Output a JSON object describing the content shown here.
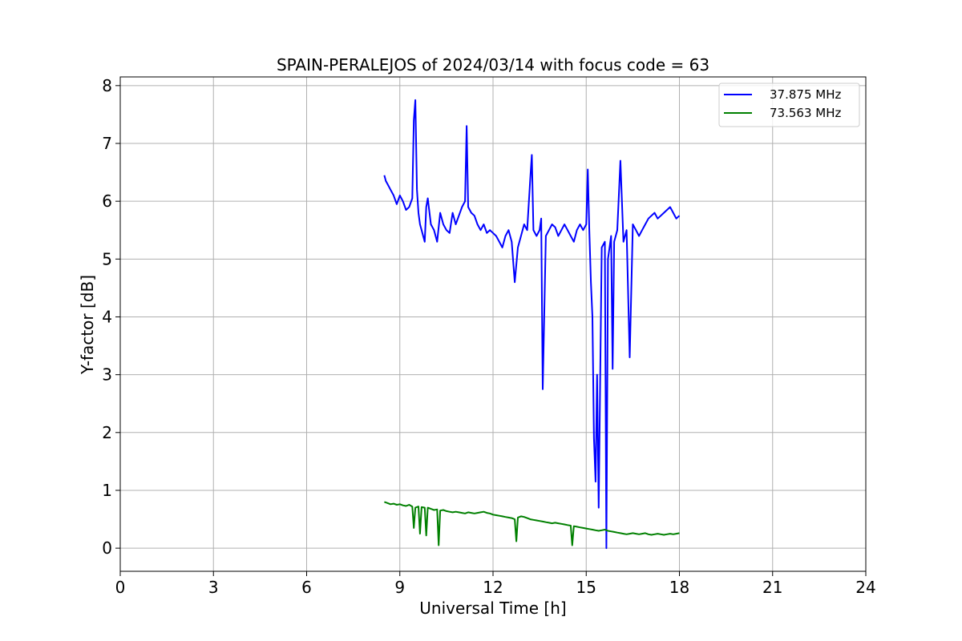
{
  "chart_data": {
    "type": "line",
    "title": "SPAIN-PERALEJOS of 2024/03/14 with focus code = 63",
    "xlabel": "Universal Time [h]",
    "ylabel": "Y-factor [dB]",
    "xlim": [
      0,
      24
    ],
    "ylim": [
      -0.4,
      8.15
    ],
    "xticks": [
      0,
      3,
      6,
      9,
      12,
      15,
      18,
      21,
      24
    ],
    "yticks": [
      0,
      1,
      2,
      3,
      4,
      5,
      6,
      7,
      8
    ],
    "grid": true,
    "legend_position": "top-right",
    "series": [
      {
        "name": "37.875 MHz",
        "color": "#0000ff",
        "x": [
          8.5,
          8.55,
          8.6,
          8.7,
          8.8,
          8.9,
          9.0,
          9.1,
          9.2,
          9.3,
          9.4,
          9.45,
          9.5,
          9.55,
          9.6,
          9.65,
          9.7,
          9.8,
          9.85,
          9.9,
          10.0,
          10.1,
          10.2,
          10.3,
          10.4,
          10.5,
          10.6,
          10.7,
          10.8,
          10.9,
          11.0,
          11.1,
          11.15,
          11.2,
          11.3,
          11.4,
          11.5,
          11.6,
          11.7,
          11.8,
          11.9,
          12.0,
          12.1,
          12.2,
          12.3,
          12.4,
          12.5,
          12.6,
          12.7,
          12.8,
          12.9,
          13.0,
          13.1,
          13.2,
          13.25,
          13.3,
          13.4,
          13.5,
          13.55,
          13.6,
          13.7,
          13.8,
          13.9,
          14.0,
          14.1,
          14.2,
          14.3,
          14.4,
          14.5,
          14.6,
          14.7,
          14.8,
          14.9,
          15.0,
          15.05,
          15.1,
          15.15,
          15.2,
          15.25,
          15.3,
          15.35,
          15.4,
          15.5,
          15.6,
          15.65,
          15.7,
          15.8,
          15.85,
          15.9,
          16.0,
          16.1,
          16.2,
          16.3,
          16.4,
          16.5,
          16.6,
          16.7,
          16.8,
          16.9,
          17.0,
          17.1,
          17.2,
          17.3,
          17.4,
          17.5,
          17.6,
          17.7,
          17.8,
          17.9,
          18.0
        ],
        "y": [
          6.45,
          6.35,
          6.3,
          6.2,
          6.1,
          5.95,
          6.1,
          6.0,
          5.85,
          5.9,
          6.05,
          7.4,
          7.75,
          6.2,
          5.8,
          5.6,
          5.5,
          5.3,
          5.9,
          6.05,
          5.6,
          5.5,
          5.3,
          5.8,
          5.6,
          5.5,
          5.45,
          5.8,
          5.6,
          5.75,
          5.9,
          6.0,
          7.3,
          5.9,
          5.8,
          5.75,
          5.6,
          5.5,
          5.6,
          5.45,
          5.5,
          5.45,
          5.4,
          5.3,
          5.2,
          5.4,
          5.5,
          5.3,
          4.6,
          5.2,
          5.4,
          5.6,
          5.5,
          6.4,
          6.8,
          5.5,
          5.4,
          5.5,
          5.7,
          2.75,
          5.4,
          5.5,
          5.6,
          5.55,
          5.4,
          5.5,
          5.6,
          5.5,
          5.4,
          5.3,
          5.5,
          5.6,
          5.5,
          5.6,
          6.55,
          5.5,
          4.6,
          4.0,
          1.9,
          1.15,
          3.0,
          0.7,
          5.2,
          5.3,
          0.0,
          5.0,
          5.4,
          3.1,
          5.3,
          5.5,
          6.7,
          5.3,
          5.5,
          3.3,
          5.6,
          5.5,
          5.4,
          5.5,
          5.6,
          5.7,
          5.75,
          5.8,
          5.7,
          5.75,
          5.8,
          5.85,
          5.9,
          5.8,
          5.7,
          5.75
        ]
      },
      {
        "name": "73.563 MHz",
        "color": "#008000",
        "x": [
          8.5,
          8.6,
          8.7,
          8.8,
          8.9,
          9.0,
          9.1,
          9.2,
          9.3,
          9.4,
          9.45,
          9.5,
          9.6,
          9.65,
          9.7,
          9.8,
          9.85,
          9.9,
          10.0,
          10.1,
          10.2,
          10.25,
          10.3,
          10.4,
          10.5,
          10.6,
          10.7,
          10.8,
          10.9,
          11.0,
          11.1,
          11.2,
          11.3,
          11.4,
          11.5,
          11.6,
          11.7,
          11.8,
          11.9,
          12.0,
          12.1,
          12.2,
          12.3,
          12.4,
          12.5,
          12.6,
          12.7,
          12.75,
          12.8,
          12.9,
          13.0,
          13.1,
          13.2,
          13.3,
          13.4,
          13.5,
          13.6,
          13.7,
          13.8,
          13.9,
          14.0,
          14.1,
          14.2,
          14.3,
          14.4,
          14.5,
          14.55,
          14.6,
          14.7,
          14.8,
          14.9,
          15.0,
          15.1,
          15.2,
          15.3,
          15.4,
          15.5,
          15.6,
          15.7,
          15.8,
          15.9,
          16.0,
          16.1,
          16.2,
          16.3,
          16.4,
          16.5,
          16.6,
          16.7,
          16.8,
          16.9,
          17.0,
          17.1,
          17.2,
          17.3,
          17.4,
          17.5,
          17.6,
          17.7,
          17.8,
          17.9,
          18.0
        ],
        "y": [
          0.8,
          0.78,
          0.76,
          0.77,
          0.75,
          0.76,
          0.74,
          0.73,
          0.75,
          0.72,
          0.35,
          0.7,
          0.72,
          0.25,
          0.71,
          0.7,
          0.22,
          0.7,
          0.68,
          0.66,
          0.67,
          0.05,
          0.65,
          0.66,
          0.64,
          0.63,
          0.62,
          0.63,
          0.62,
          0.61,
          0.6,
          0.62,
          0.61,
          0.6,
          0.61,
          0.62,
          0.63,
          0.61,
          0.6,
          0.58,
          0.57,
          0.56,
          0.55,
          0.54,
          0.53,
          0.52,
          0.5,
          0.12,
          0.53,
          0.55,
          0.54,
          0.52,
          0.5,
          0.49,
          0.48,
          0.47,
          0.46,
          0.45,
          0.44,
          0.43,
          0.44,
          0.43,
          0.42,
          0.41,
          0.4,
          0.39,
          0.05,
          0.38,
          0.37,
          0.36,
          0.35,
          0.34,
          0.33,
          0.32,
          0.31,
          0.3,
          0.31,
          0.32,
          0.3,
          0.29,
          0.28,
          0.27,
          0.26,
          0.25,
          0.24,
          0.25,
          0.26,
          0.25,
          0.24,
          0.25,
          0.26,
          0.24,
          0.23,
          0.24,
          0.25,
          0.24,
          0.23,
          0.24,
          0.25,
          0.24,
          0.25,
          0.26
        ]
      }
    ]
  }
}
